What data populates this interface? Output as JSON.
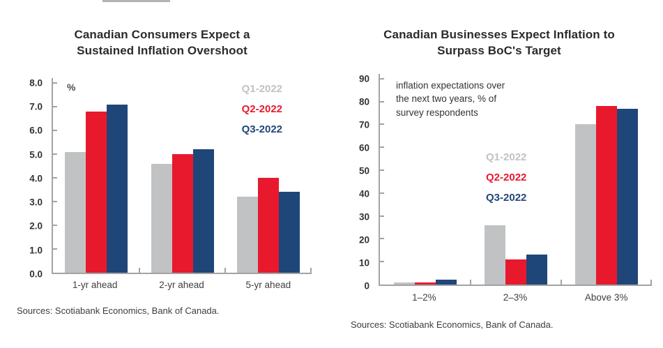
{
  "decoration": {
    "top_fragment_color": "#b3b3b3"
  },
  "axis_color": "#a3a3a3",
  "chart_data": [
    {
      "type": "bar",
      "title": "Canadian Consumers Expect a Sustained Inflation Overshoot",
      "title_lines": [
        "Canadian Consumers Expect a",
        "Sustained Inflation Overshoot"
      ],
      "unit_label": "%",
      "categories": [
        "1-yr ahead",
        "2-yr ahead",
        "5-yr ahead"
      ],
      "series": [
        {
          "name": "Q1-2022",
          "color": "#c1c2c4",
          "values": [
            5.1,
            4.6,
            3.2
          ]
        },
        {
          "name": "Q2-2022",
          "color": "#e8192d",
          "values": [
            6.8,
            5.0,
            4.0
          ]
        },
        {
          "name": "Q3-2022",
          "color": "#1f4678",
          "values": [
            7.1,
            5.2,
            3.4
          ]
        }
      ],
      "xlabel": "",
      "ylabel": "%",
      "ylim": [
        0,
        8
      ],
      "ytick_values": [
        0,
        1,
        2,
        3,
        4,
        5,
        6,
        7,
        8
      ],
      "ytick_labels": [
        "0.0",
        "1.0",
        "2.0",
        "3.0",
        "4.0",
        "5.0",
        "6.0",
        "7.0",
        "8.0"
      ],
      "grid": false,
      "legend_position": "top-right",
      "annotation": "",
      "annotation_lines": [],
      "source": "Sources: Scotiabank Economics, Bank of Canada."
    },
    {
      "type": "bar",
      "title": "Canadian Businesses Expect Inflation to Surpass BoC's Target",
      "title_lines": [
        "Canadian Businesses Expect Inflation to",
        "Surpass BoC's Target"
      ],
      "unit_label": "",
      "categories": [
        "1–2%",
        "2–3%",
        "Above 3%"
      ],
      "series": [
        {
          "name": "Q1-2022",
          "color": "#c1c2c4",
          "values": [
            1,
            26,
            70
          ]
        },
        {
          "name": "Q2-2022",
          "color": "#e8192d",
          "values": [
            1,
            11,
            78
          ]
        },
        {
          "name": "Q3-2022",
          "color": "#1f4678",
          "values": [
            2,
            13,
            77
          ]
        }
      ],
      "xlabel": "",
      "ylabel": "% of survey respondents",
      "ylim": [
        0,
        90
      ],
      "ytick_values": [
        0,
        10,
        20,
        30,
        40,
        50,
        60,
        70,
        80,
        90
      ],
      "ytick_labels": [
        "0",
        "10",
        "20",
        "30",
        "40",
        "50",
        "60",
        "70",
        "80",
        "90"
      ],
      "grid": false,
      "legend_position": "center",
      "annotation": "inflation expectations over the next two years, % of survey respondents",
      "annotation_lines": [
        "inflation expectations over",
        "the next two years, % of",
        "survey respondents"
      ],
      "source": "Sources: Scotiabank Economics, Bank of Canada."
    }
  ]
}
